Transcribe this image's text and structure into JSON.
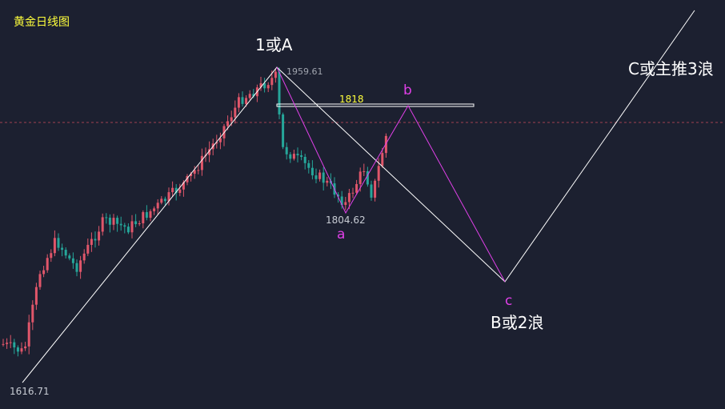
{
  "chart_data": {
    "type": "candlestick",
    "title": "黄金日线图",
    "colors": {
      "background": "#1c2030",
      "up": "#e0566a",
      "down": "#26a69a",
      "wave_main": "#ffffff",
      "wave_sub": "#e040e8",
      "level_text": "#ffff3c",
      "dashed_line": "#a04050"
    },
    "price_labels": {
      "low": "1616.71",
      "high": "1959.61",
      "correction_low": "1804.62"
    },
    "level_line": {
      "label": "1818"
    },
    "wave_labels": {
      "one_or_a": "1或A",
      "b_or_2": "B或2浪",
      "c_or_3": "C或主推3浪",
      "sub_a": "a",
      "sub_b": "b",
      "sub_c": "c"
    }
  }
}
